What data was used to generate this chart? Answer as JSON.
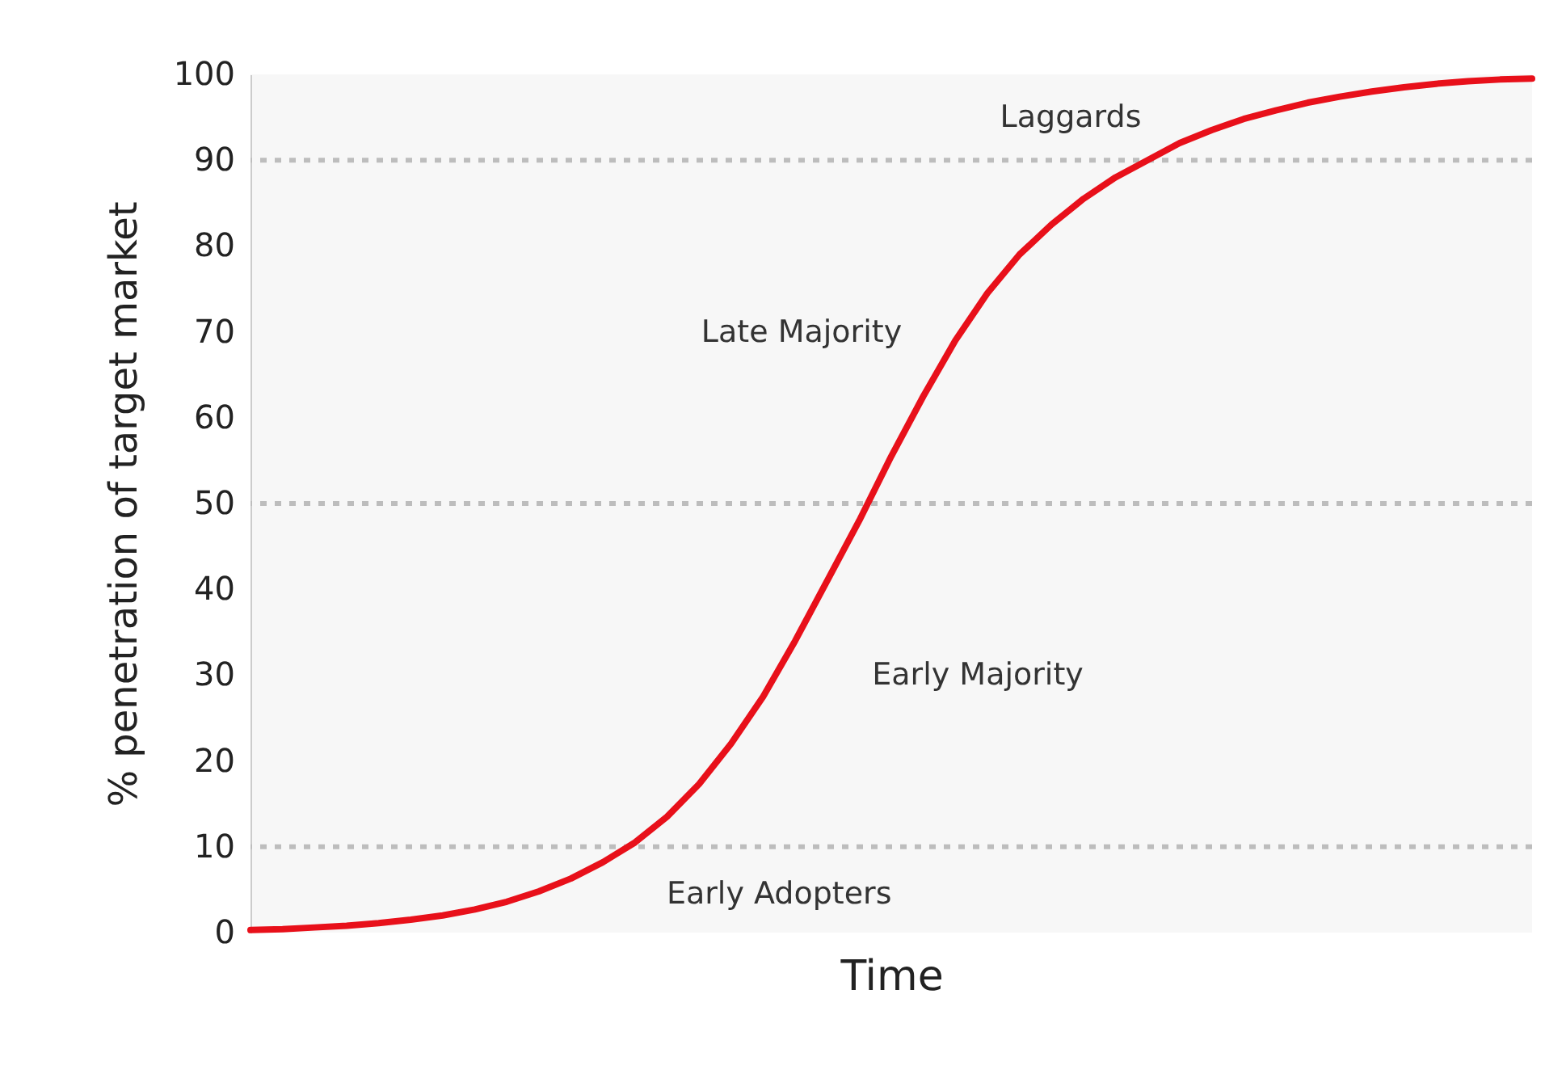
{
  "chart_data": {
    "type": "line",
    "xlabel": "Time",
    "ylabel": "% penetration of target market",
    "categories": [
      null,
      null,
      null,
      null,
      null,
      null,
      null,
      null,
      null,
      null,
      null,
      null,
      null,
      null,
      null,
      null,
      null,
      null,
      null,
      null,
      null,
      null,
      null,
      null,
      null,
      null,
      null,
      null,
      null,
      null,
      null,
      null,
      null,
      null,
      null,
      null,
      null,
      null,
      null,
      null,
      null
    ],
    "series": [
      {
        "color": "#e8101a",
        "values": [
          0.3,
          0.4,
          0.6,
          0.8,
          1.1,
          1.5,
          2.0,
          2.7,
          3.6,
          4.8,
          6.3,
          8.2,
          10.5,
          13.5,
          17.3,
          22,
          27.5,
          34,
          41,
          48,
          55.5,
          62.5,
          69,
          74.5,
          79,
          82.5,
          85.5,
          88,
          90,
          92,
          93.5,
          94.8,
          95.8,
          96.7,
          97.4,
          98,
          98.5,
          98.9,
          99.2,
          99.4,
          99.5
        ]
      }
    ],
    "ylim": [
      0,
      100
    ],
    "yticks": [
      0,
      10,
      20,
      30,
      40,
      50,
      60,
      70,
      80,
      90,
      100
    ],
    "tick_labels": "y",
    "grid": false,
    "marker": "none",
    "line_style": "solid",
    "ref_lines": [
      {
        "axis": "y",
        "value": 10,
        "color": "#bdbdbd",
        "line_style": "dotted"
      },
      {
        "axis": "y",
        "value": 50,
        "color": "#bdbdbd",
        "line_style": "dotted"
      },
      {
        "axis": "y",
        "value": 90,
        "color": "#bdbdbd",
        "line_style": "dotted"
      }
    ],
    "annotations": [
      "Laggards",
      "Late Majority",
      "Early Majority",
      "Early Adopters"
    ]
  }
}
